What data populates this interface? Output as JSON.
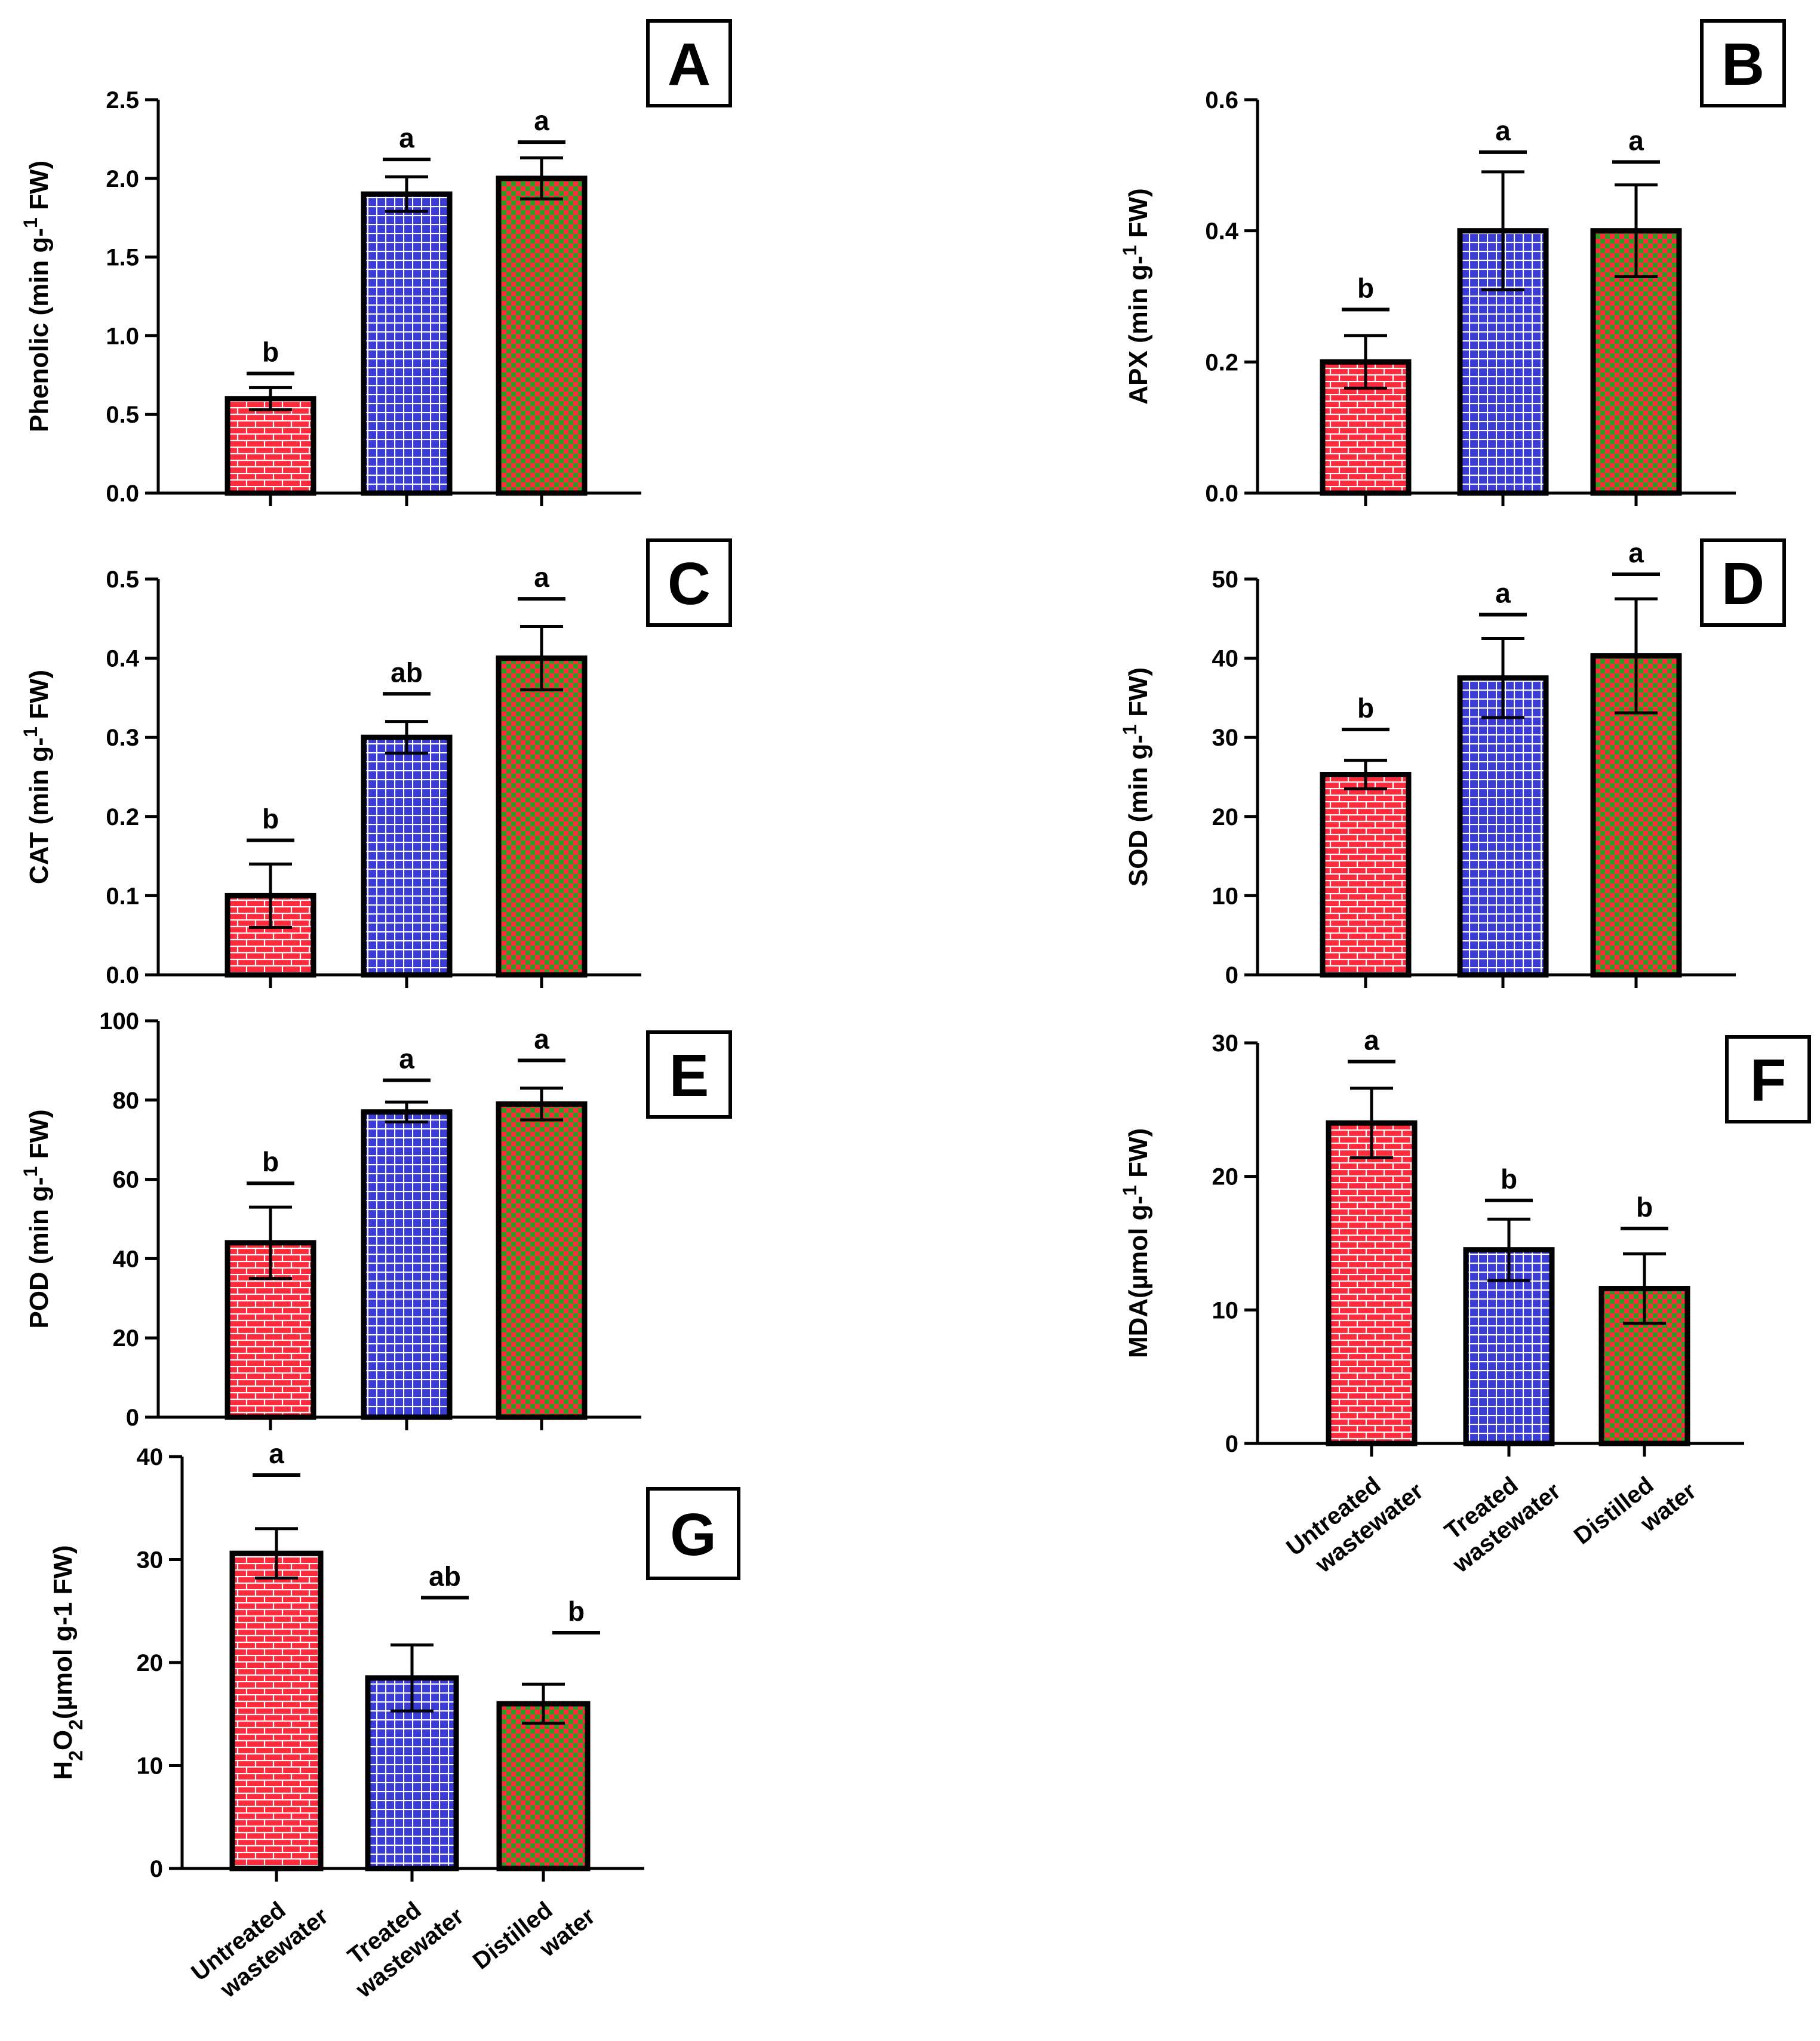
{
  "figure": {
    "categories": [
      [
        "Untreated",
        "wastewater"
      ],
      [
        "Treated",
        "wastewater"
      ],
      [
        "Distilled",
        "water"
      ]
    ],
    "colors": {
      "untreated": "#ff2a3c",
      "treated": "#3b3bd6",
      "distilled": "#2e9a1e",
      "pattern_line": "#ffffff"
    },
    "pattern_names": [
      "brick-pattern",
      "grid-pattern",
      "checker-pattern"
    ]
  },
  "chart_data": [
    {
      "panel": "A",
      "type": "bar",
      "ylabel": "Phenolic (min g-1 FW)",
      "ylim": [
        0,
        2.5
      ],
      "yticks": [
        "0.0",
        "0.5",
        "1.0",
        "1.5",
        "2.0",
        "2.5"
      ],
      "values": [
        0.6,
        1.9,
        2.0
      ],
      "errors": [
        0.07,
        0.11,
        0.13
      ],
      "sig": [
        "b",
        "a",
        "a"
      ],
      "sig_level": [
        0.76,
        2.12,
        2.23
      ]
    },
    {
      "panel": "B",
      "type": "bar",
      "ylabel": "APX (min g-1 FW)",
      "ylim": [
        0,
        0.6
      ],
      "yticks": [
        "0.0",
        "0.2",
        "0.4",
        "0.6"
      ],
      "values": [
        0.2,
        0.4,
        0.4
      ],
      "errors": [
        0.04,
        0.09,
        0.07
      ],
      "sig": [
        "b",
        "a",
        "a"
      ],
      "sig_level": [
        0.28,
        0.52,
        0.505
      ]
    },
    {
      "panel": "C",
      "type": "bar",
      "ylabel": "CAT (min g-1 FW)",
      "ylim": [
        0,
        0.5
      ],
      "yticks": [
        "0.0",
        "0.1",
        "0.2",
        "0.3",
        "0.4",
        "0.5"
      ],
      "values": [
        0.1,
        0.3,
        0.4
      ],
      "errors": [
        0.04,
        0.02,
        0.04
      ],
      "sig": [
        "b",
        "ab",
        "a"
      ],
      "sig_level": [
        0.17,
        0.355,
        0.475
      ]
    },
    {
      "panel": "D",
      "type": "bar",
      "ylabel": "SOD (min g-1 FW)",
      "ylim": [
        0,
        50
      ],
      "yticks": [
        "0",
        "10",
        "20",
        "30",
        "40",
        "50"
      ],
      "values": [
        25.3,
        37.5,
        40.3
      ],
      "errors": [
        1.8,
        5.0,
        7.2
      ],
      "sig": [
        "b",
        "a",
        "a"
      ],
      "sig_level": [
        31,
        45.5,
        50.6
      ]
    },
    {
      "panel": "E",
      "type": "bar",
      "ylabel": "POD (min g-1 FW)",
      "ylim": [
        0,
        100
      ],
      "yticks": [
        "0",
        "20",
        "40",
        "60",
        "80",
        "100"
      ],
      "values": [
        44,
        77,
        79
      ],
      "errors": [
        9,
        2.5,
        4
      ],
      "sig": [
        "b",
        "a",
        "a"
      ],
      "sig_level": [
        59,
        85,
        90
      ]
    },
    {
      "panel": "F",
      "type": "bar",
      "ylabel": "MDA(µmol g-1 FW)",
      "ylim": [
        0,
        30
      ],
      "yticks": [
        "0",
        "10",
        "20",
        "30"
      ],
      "values": [
        24,
        14.5,
        11.6
      ],
      "errors": [
        2.6,
        2.3,
        2.6
      ],
      "sig": [
        "a",
        "b",
        "b"
      ],
      "sig_level": [
        28.6,
        18.2,
        16.1
      ]
    },
    {
      "panel": "G",
      "type": "bar",
      "ylabel": "H2O2(µmol g-1 FW)",
      "ylim": [
        0,
        40
      ],
      "yticks": [
        "0",
        "10",
        "20",
        "30",
        "40"
      ],
      "values": [
        30.6,
        18.5,
        16
      ],
      "errors": [
        2.4,
        3.2,
        1.9
      ],
      "sig": [
        "a",
        "ab",
        "b"
      ],
      "sig_level": [
        38.2,
        26.3,
        22.9
      ]
    }
  ]
}
